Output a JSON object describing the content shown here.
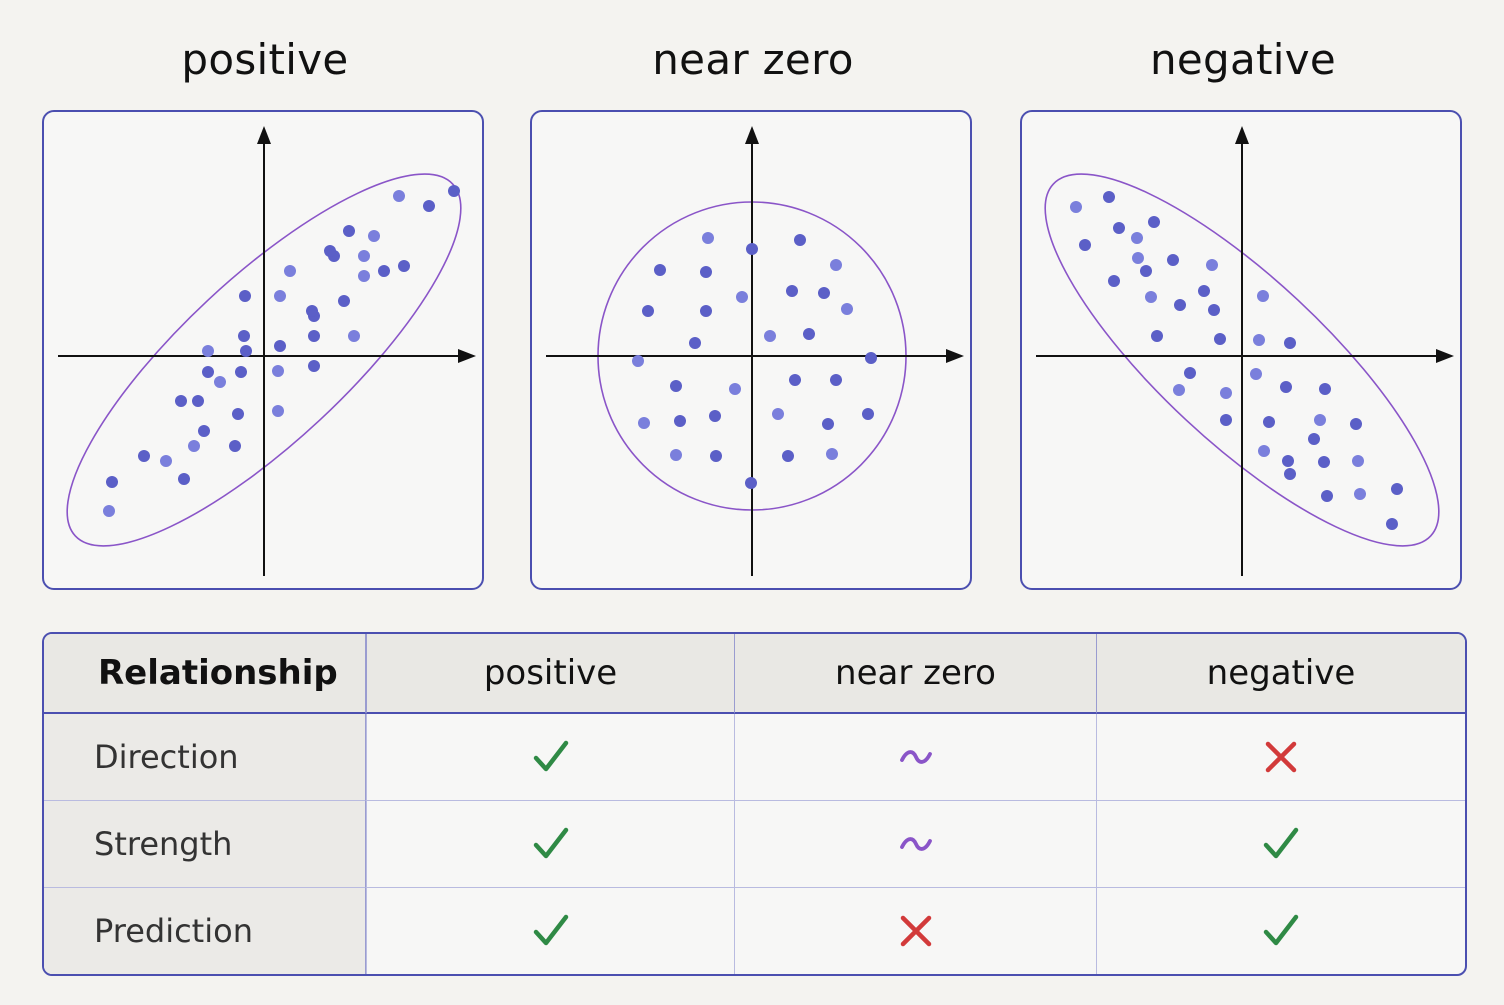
{
  "panels": [
    {
      "title": "positive",
      "shape": "ellipse-tilted-up",
      "point_color": "#5b5fc7",
      "points": [
        [
          -155,
          -155
        ],
        [
          -152,
          -126
        ],
        [
          -120,
          -100
        ],
        [
          -98,
          -105
        ],
        [
          -80,
          -123
        ],
        [
          -60,
          -75
        ],
        [
          -70,
          -90
        ],
        [
          -29,
          -90
        ],
        [
          -26,
          -58
        ],
        [
          14,
          -55
        ],
        [
          -66,
          -45
        ],
        [
          -83,
          -45
        ],
        [
          -44,
          -26
        ],
        [
          -56,
          -16
        ],
        [
          -23,
          -16
        ],
        [
          14,
          -15
        ],
        [
          50,
          -10
        ],
        [
          -18,
          5
        ],
        [
          -56,
          5
        ],
        [
          16,
          10
        ],
        [
          50,
          20
        ],
        [
          90,
          20
        ],
        [
          -20,
          20
        ],
        [
          -19,
          60
        ],
        [
          16,
          60
        ],
        [
          50,
          40
        ],
        [
          80,
          55
        ],
        [
          100,
          80
        ],
        [
          120,
          85
        ],
        [
          140,
          90
        ],
        [
          26,
          85
        ],
        [
          70,
          100
        ],
        [
          85,
          125
        ],
        [
          110,
          120
        ],
        [
          165,
          150
        ],
        [
          190,
          165
        ],
        [
          135,
          160
        ],
        [
          66,
          105
        ],
        [
          48,
          45
        ],
        [
          100,
          100
        ]
      ]
    },
    {
      "title": "near zero",
      "shape": "circle",
      "point_color": "#5b5fc7",
      "points": [
        [
          -44,
          118
        ],
        [
          0,
          107
        ],
        [
          48,
          116
        ],
        [
          84,
          91
        ],
        [
          -92,
          86
        ],
        [
          -46,
          84
        ],
        [
          -10,
          59
        ],
        [
          40,
          65
        ],
        [
          72,
          63
        ],
        [
          95,
          47
        ],
        [
          -104,
          45
        ],
        [
          -46,
          45
        ],
        [
          18,
          20
        ],
        [
          57,
          22
        ],
        [
          -57,
          13
        ],
        [
          -114,
          -5
        ],
        [
          119,
          -2
        ],
        [
          -76,
          -30
        ],
        [
          -17,
          -33
        ],
        [
          43,
          -24
        ],
        [
          84,
          -24
        ],
        [
          -108,
          -67
        ],
        [
          -72,
          -65
        ],
        [
          -37,
          -60
        ],
        [
          26,
          -58
        ],
        [
          76,
          -68
        ],
        [
          116,
          -58
        ],
        [
          -76,
          -99
        ],
        [
          -36,
          -100
        ],
        [
          36,
          -100
        ],
        [
          80,
          -98
        ],
        [
          -1,
          -127
        ]
      ]
    },
    {
      "title": "negative",
      "shape": "ellipse-tilted-down",
      "point_color": "#5b5fc7",
      "points": [
        [
          -166,
          149
        ],
        [
          -133,
          159
        ],
        [
          -123,
          128
        ],
        [
          -105,
          118
        ],
        [
          -88,
          134
        ],
        [
          -157,
          111
        ],
        [
          -104,
          98
        ],
        [
          -96,
          85
        ],
        [
          -69,
          96
        ],
        [
          -30,
          91
        ],
        [
          -128,
          75
        ],
        [
          -38,
          65
        ],
        [
          -91,
          59
        ],
        [
          -62,
          51
        ],
        [
          -28,
          46
        ],
        [
          21,
          60
        ],
        [
          -85,
          20
        ],
        [
          -22,
          17
        ],
        [
          17,
          16
        ],
        [
          48,
          13
        ],
        [
          -52,
          -17
        ],
        [
          14,
          -18
        ],
        [
          44,
          -31
        ],
        [
          83,
          -33
        ],
        [
          -16,
          -37
        ],
        [
          -16,
          -64
        ],
        [
          27,
          -66
        ],
        [
          78,
          -64
        ],
        [
          114,
          -68
        ],
        [
          72,
          -83
        ],
        [
          22,
          -95
        ],
        [
          46,
          -105
        ],
        [
          82,
          -106
        ],
        [
          116,
          -105
        ],
        [
          48,
          -118
        ],
        [
          85,
          -140
        ],
        [
          118,
          -138
        ],
        [
          155,
          -133
        ],
        [
          150,
          -168
        ],
        [
          -63,
          -34
        ]
      ]
    }
  ],
  "table": {
    "header": [
      "Relationship",
      "positive",
      "near zero",
      "negative"
    ],
    "rows": [
      {
        "label": "Direction",
        "marks": [
          "check",
          "tilde",
          "cross"
        ]
      },
      {
        "label": "Strength",
        "marks": [
          "check",
          "tilde",
          "check"
        ]
      },
      {
        "label": "Prediction",
        "marks": [
          "check",
          "cross",
          "check"
        ]
      }
    ]
  },
  "colors": {
    "frame": "#4b4fb0",
    "ellipse": "#8a55c8",
    "check": "#2f8a45",
    "cross": "#d23a3a",
    "tilde": "#8a55c8"
  }
}
